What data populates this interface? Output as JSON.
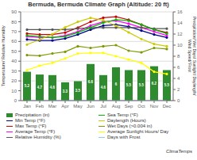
{
  "chart_data": {
    "type": "bar",
    "title": "Bermuda, Bermuda Climate Graph (Altitude: 20 ft)",
    "ylabel": "Temperature/ Relative Humidity",
    "y2label": "Precipitation/ Wet Days/ Sunlight/ Daylength/ Wind Speed/ Frost",
    "categories": [
      "Jan",
      "Feb",
      "Mar",
      "Apr",
      "May",
      "Jun",
      "Jul",
      "Aug",
      "Sep",
      "Oct",
      "Nov",
      "Dec"
    ],
    "series": [
      {
        "name": "Precipitation (in)",
        "type": "bar",
        "axis": "y2",
        "color": "#2e8b2e",
        "data_labels": true,
        "values": [
          5.2,
          4.7,
          4.6,
          3.3,
          3.5,
          6.6,
          4.6,
          6.0,
          5.5,
          5.5,
          6.2,
          5.5
        ]
      },
      {
        "name": "Min Temp (°F)",
        "type": "line",
        "axis": "y",
        "color": "#00008b",
        "marker": "circle",
        "values": [
          62,
          61,
          61,
          63,
          67,
          72,
          76,
          77,
          75,
          71,
          67,
          64
        ]
      },
      {
        "name": "Max Temp (°F)",
        "type": "line",
        "axis": "y",
        "color": "#cc0000",
        "marker": "circle",
        "values": [
          68,
          67,
          67,
          69,
          74,
          80,
          84,
          85,
          82,
          77,
          72,
          69
        ]
      },
      {
        "name": "Average Temp (°F)",
        "type": "line",
        "axis": "y",
        "color": "#ff00ff",
        "marker": "circle",
        "values": [
          65,
          64,
          64,
          66,
          70,
          76,
          80,
          81,
          78,
          74,
          70,
          66
        ]
      },
      {
        "name": "Relative Humidity (%)",
        "type": "line",
        "axis": "y",
        "color": "#555555",
        "marker": "circle",
        "values": [
          72,
          72,
          72,
          72,
          73,
          74,
          74,
          74,
          74,
          74,
          73,
          73
        ]
      },
      {
        "name": "Sea Temp (°F)",
        "type": "line",
        "axis": "y",
        "color": "#00bb00",
        "marker": "circle",
        "values": [
          66,
          65,
          64,
          65,
          69,
          74,
          79,
          82,
          81,
          77,
          72,
          68
        ]
      },
      {
        "name": "Daylength (Hours)",
        "type": "line",
        "axis": "y2",
        "color": "#cccc00",
        "marker": "circle",
        "values": [
          10.1,
          11.0,
          12.0,
          13.2,
          14.2,
          14.9,
          14.5,
          13.5,
          12.3,
          11.1,
          10.2,
          9.8
        ]
      },
      {
        "name": "Wet Days (>0.004 in)",
        "type": "line",
        "axis": "y2",
        "color": "#7a9a00",
        "marker": "circle",
        "values": [
          8.2,
          8.1,
          8.5,
          8.8,
          9.8,
          9.5,
          9.8,
          10.0,
          9.0,
          8.7,
          9.5,
          9.3
        ]
      },
      {
        "name": "Average Sunlight Hours/ Day",
        "type": "line",
        "axis": "y2",
        "color": "#ffff00",
        "marker": "circle",
        "values": [
          5.5,
          6.3,
          6.8,
          7.6,
          8.5,
          8.6,
          8.6,
          8.0,
          7.4,
          6.8,
          5.2,
          4.8
        ]
      },
      {
        "name": "Days with Frost",
        "type": "line",
        "axis": "y2",
        "color": "#88ccee",
        "marker": "none",
        "values": [
          0,
          0,
          0,
          0,
          0,
          0,
          0,
          0,
          0,
          0,
          0,
          0
        ]
      }
    ],
    "ylim": [
      0,
      90
    ],
    "yticks": [
      0,
      10,
      20,
      30,
      40,
      50,
      60,
      70,
      80,
      90
    ],
    "y2lim": [
      0,
      16
    ],
    "y2ticks": [
      0,
      2,
      4,
      6,
      8,
      10,
      12,
      14,
      16
    ],
    "grid": true,
    "legend": "bottom",
    "annotations": [
      "ClimaTemps"
    ]
  }
}
